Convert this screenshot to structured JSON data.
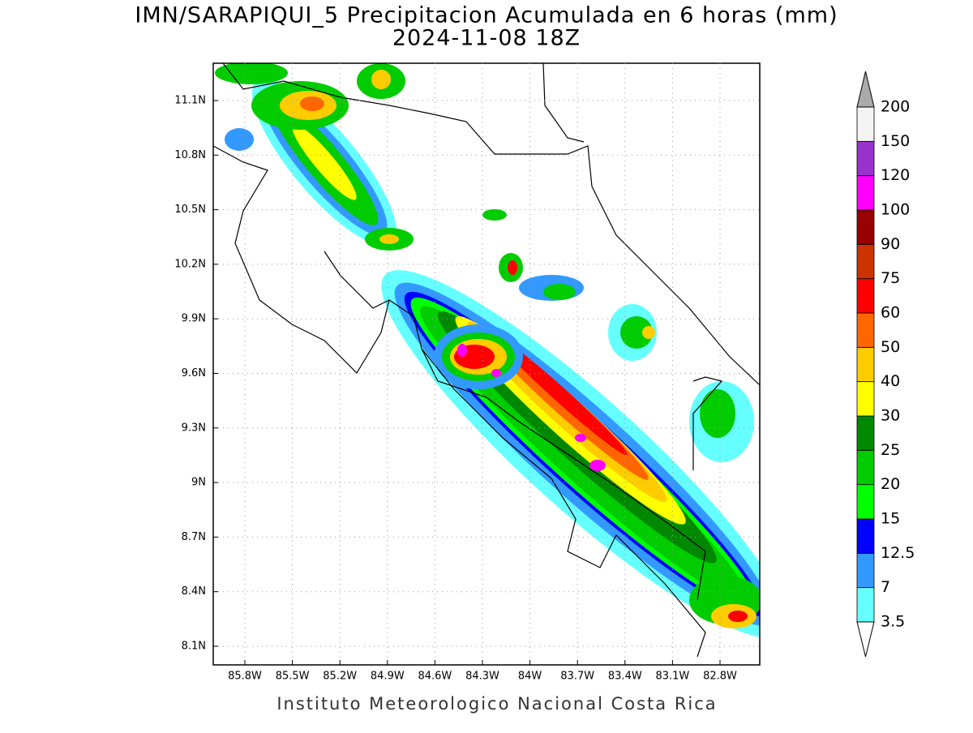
{
  "map": {
    "title": "IMN/SARAPIQUI_5 Precipitacion Acumulada en 6 horas (mm)",
    "subtitle": "2024-11-08 18Z",
    "lon_ticks": [
      "85.8W",
      "85.5W",
      "85.2W",
      "84.9W",
      "84.6W",
      "84.3W",
      "84W",
      "83.7W",
      "83.4W",
      "83.1W",
      "82.8W"
    ],
    "lat_ticks": [
      "11.1N",
      "10.8N",
      "10.5N",
      "10.2N",
      "9.9N",
      "9.6N",
      "9.3N",
      "9N",
      "8.7N",
      "8.4N",
      "8.1N"
    ],
    "colorbar": {
      "levels": [
        3.5,
        7,
        12.5,
        15,
        20,
        25,
        30,
        40,
        50,
        60,
        75,
        90,
        100,
        120,
        150,
        200
      ],
      "colors": [
        "#66ffff",
        "#3399ff",
        "#0000ff",
        "#00ff00",
        "#00cc00",
        "#008800",
        "#ffff00",
        "#ffcc00",
        "#ff6600",
        "#ff0000",
        "#cc3300",
        "#990000",
        "#ff00ff",
        "#9933cc",
        "#f4f4f4"
      ],
      "under_color": "#ffffff",
      "over_color": "#aaaaaa"
    },
    "footer": "Instituto Meteorologico Nacional Costa Rica"
  }
}
